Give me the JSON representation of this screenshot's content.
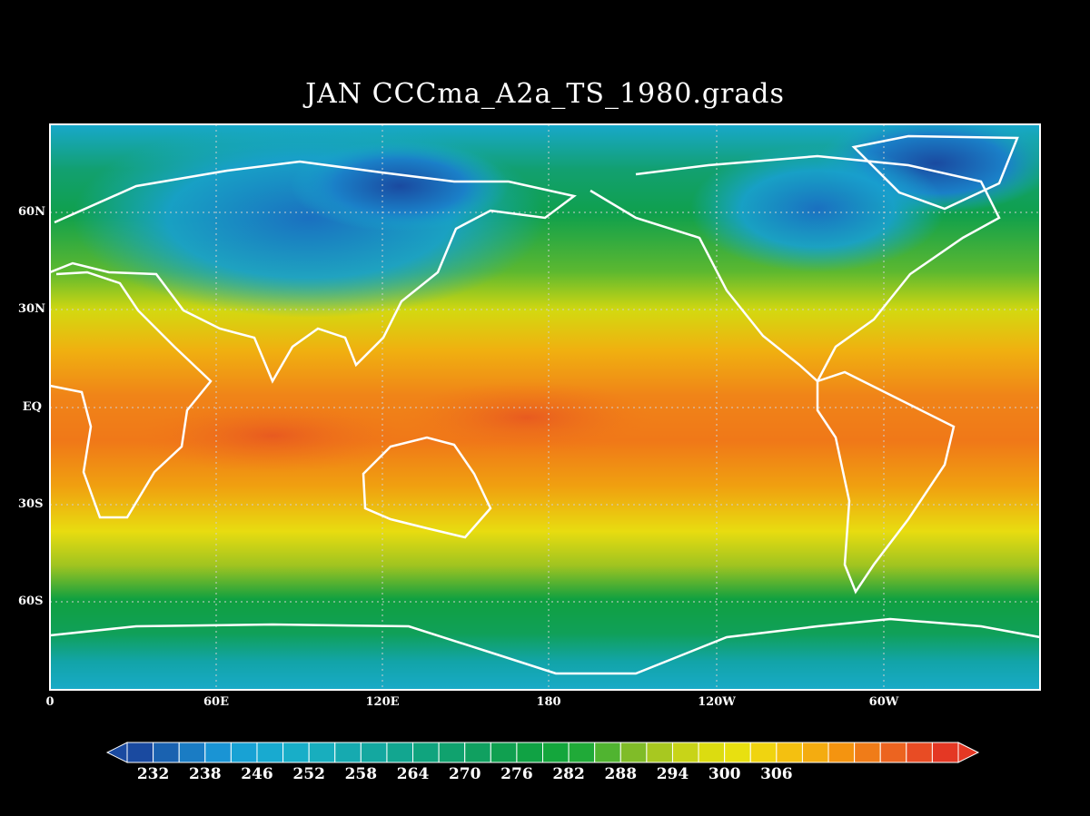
{
  "title": "JAN CCCma_A2a_TS_1980.grads",
  "map": {
    "projection": "latitude-longitude",
    "lat_labels": [
      "60N",
      "30N",
      "EQ",
      "30S",
      "60S"
    ],
    "lon_labels": [
      "0",
      "60E",
      "120E",
      "180",
      "120W",
      "60W"
    ],
    "grid": "dotted",
    "coastline_color": "#ffffff"
  },
  "colorbar": {
    "labels": [
      "232",
      "238",
      "246",
      "252",
      "258",
      "264",
      "270",
      "276",
      "282",
      "288",
      "294",
      "300",
      "306"
    ],
    "colors": [
      "#1a4aa0",
      "#1a62b0",
      "#1a7cc4",
      "#1a94d4",
      "#18a2d4",
      "#18aad0",
      "#18aec8",
      "#18aebe",
      "#16aab0",
      "#14a8a0",
      "#12a690",
      "#10a47e",
      "#10a26e",
      "#10a060",
      "#10a050",
      "#10a244",
      "#14a63c",
      "#20aa38",
      "#50b430",
      "#80bc28",
      "#a8c820",
      "#c8d418",
      "#dcdc10",
      "#e8e010",
      "#f0d410",
      "#f4c010",
      "#f4ac10",
      "#f49410",
      "#f07c18",
      "#ec6420",
      "#e84c24",
      "#e43824"
    ],
    "extend": "both"
  }
}
